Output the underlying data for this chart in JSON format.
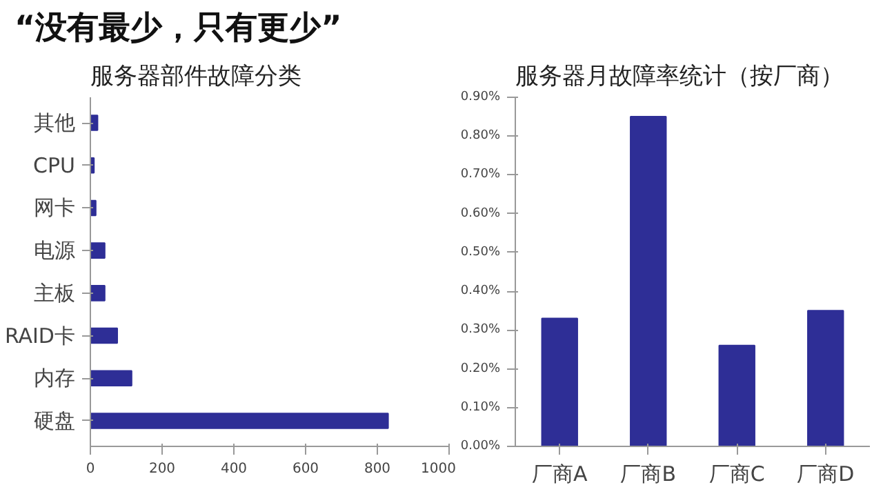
{
  "chart_data": [
    {
      "type": "bar",
      "orientation": "horizontal",
      "annotations": [
        "“没有最少，只有更少”"
      ],
      "title": "服务器部件故障分类",
      "categories": [
        "其他",
        "CPU",
        "网卡",
        "电源",
        "主板",
        "RAID卡",
        "内存",
        "硬盘"
      ],
      "values": [
        20,
        10,
        15,
        40,
        40,
        75,
        115,
        830
      ],
      "color": "#2e2e96",
      "xlim": [
        0,
        1000
      ],
      "xticks": [
        0,
        200,
        400,
        600,
        800,
        1000
      ],
      "grid": false
    },
    {
      "type": "bar",
      "title": "服务器月故障率统计（按厂商）",
      "categories": [
        "厂商A",
        "厂商B",
        "厂商C",
        "厂商D"
      ],
      "values": [
        0.33,
        0.85,
        0.26,
        0.35
      ],
      "color": "#2e2e96",
      "ylim": [
        0,
        0.9
      ],
      "yticks": [
        {
          "value": 0,
          "label": "0.00%"
        },
        {
          "value": 0.1,
          "label": "0.10%"
        },
        {
          "value": 0.2,
          "label": "0.20%"
        },
        {
          "value": 0.3,
          "label": "0.30%"
        },
        {
          "value": 0.4,
          "label": "0.40%"
        },
        {
          "value": 0.5,
          "label": "0.50%"
        },
        {
          "value": 0.6,
          "label": "0.60%"
        },
        {
          "value": 0.7,
          "label": "0.70%"
        },
        {
          "value": 0.8,
          "label": "0.80%"
        },
        {
          "value": 0.9,
          "label": "0.90%"
        }
      ],
      "grid": false
    }
  ]
}
